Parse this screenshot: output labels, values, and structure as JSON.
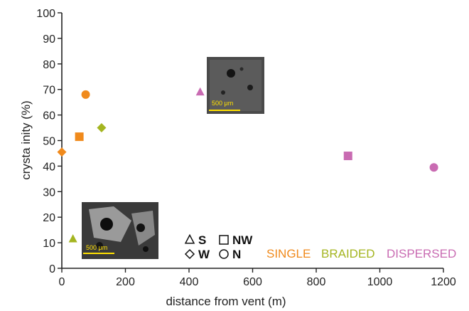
{
  "chart_data": {
    "type": "scatter",
    "xlabel": "distance from vent (m)",
    "ylabel": "crysta  inity (%)",
    "xlim": [
      0,
      1200
    ],
    "ylim": [
      0,
      100
    ],
    "xticks": [
      0,
      200,
      400,
      600,
      800,
      1000,
      1200
    ],
    "yticks": [
      0,
      10,
      20,
      30,
      40,
      50,
      60,
      70,
      80,
      90,
      100
    ],
    "grid": false,
    "groups": [
      {
        "name": "SINGLE",
        "color": "#f08a1c"
      },
      {
        "name": "BRAIDED",
        "color": "#a4b520"
      },
      {
        "name": "DISPERSED",
        "color": "#c96bb2"
      }
    ],
    "markers": [
      {
        "direction": "S",
        "shape": "triangle"
      },
      {
        "direction": "NW",
        "shape": "square"
      },
      {
        "direction": "W",
        "shape": "diamond"
      },
      {
        "direction": "N",
        "shape": "circle"
      }
    ],
    "points": [
      {
        "x": 0,
        "y": 45.5,
        "group": "SINGLE",
        "shape": "diamond"
      },
      {
        "x": 55,
        "y": 51.5,
        "group": "SINGLE",
        "shape": "square"
      },
      {
        "x": 75,
        "y": 68,
        "group": "SINGLE",
        "shape": "circle"
      },
      {
        "x": 125,
        "y": 55,
        "group": "BRAIDED",
        "shape": "diamond"
      },
      {
        "x": 35,
        "y": 11.5,
        "group": "BRAIDED",
        "shape": "triangle"
      },
      {
        "x": 435,
        "y": 69,
        "group": "DISPERSED",
        "shape": "triangle"
      },
      {
        "x": 900,
        "y": 44,
        "group": "DISPERSED",
        "shape": "square"
      },
      {
        "x": 1170,
        "y": 39.5,
        "group": "DISPERSED",
        "shape": "circle"
      }
    ],
    "insets": [
      {
        "scale_label": "500 μm"
      },
      {
        "scale_label": "500 μm"
      }
    ]
  }
}
